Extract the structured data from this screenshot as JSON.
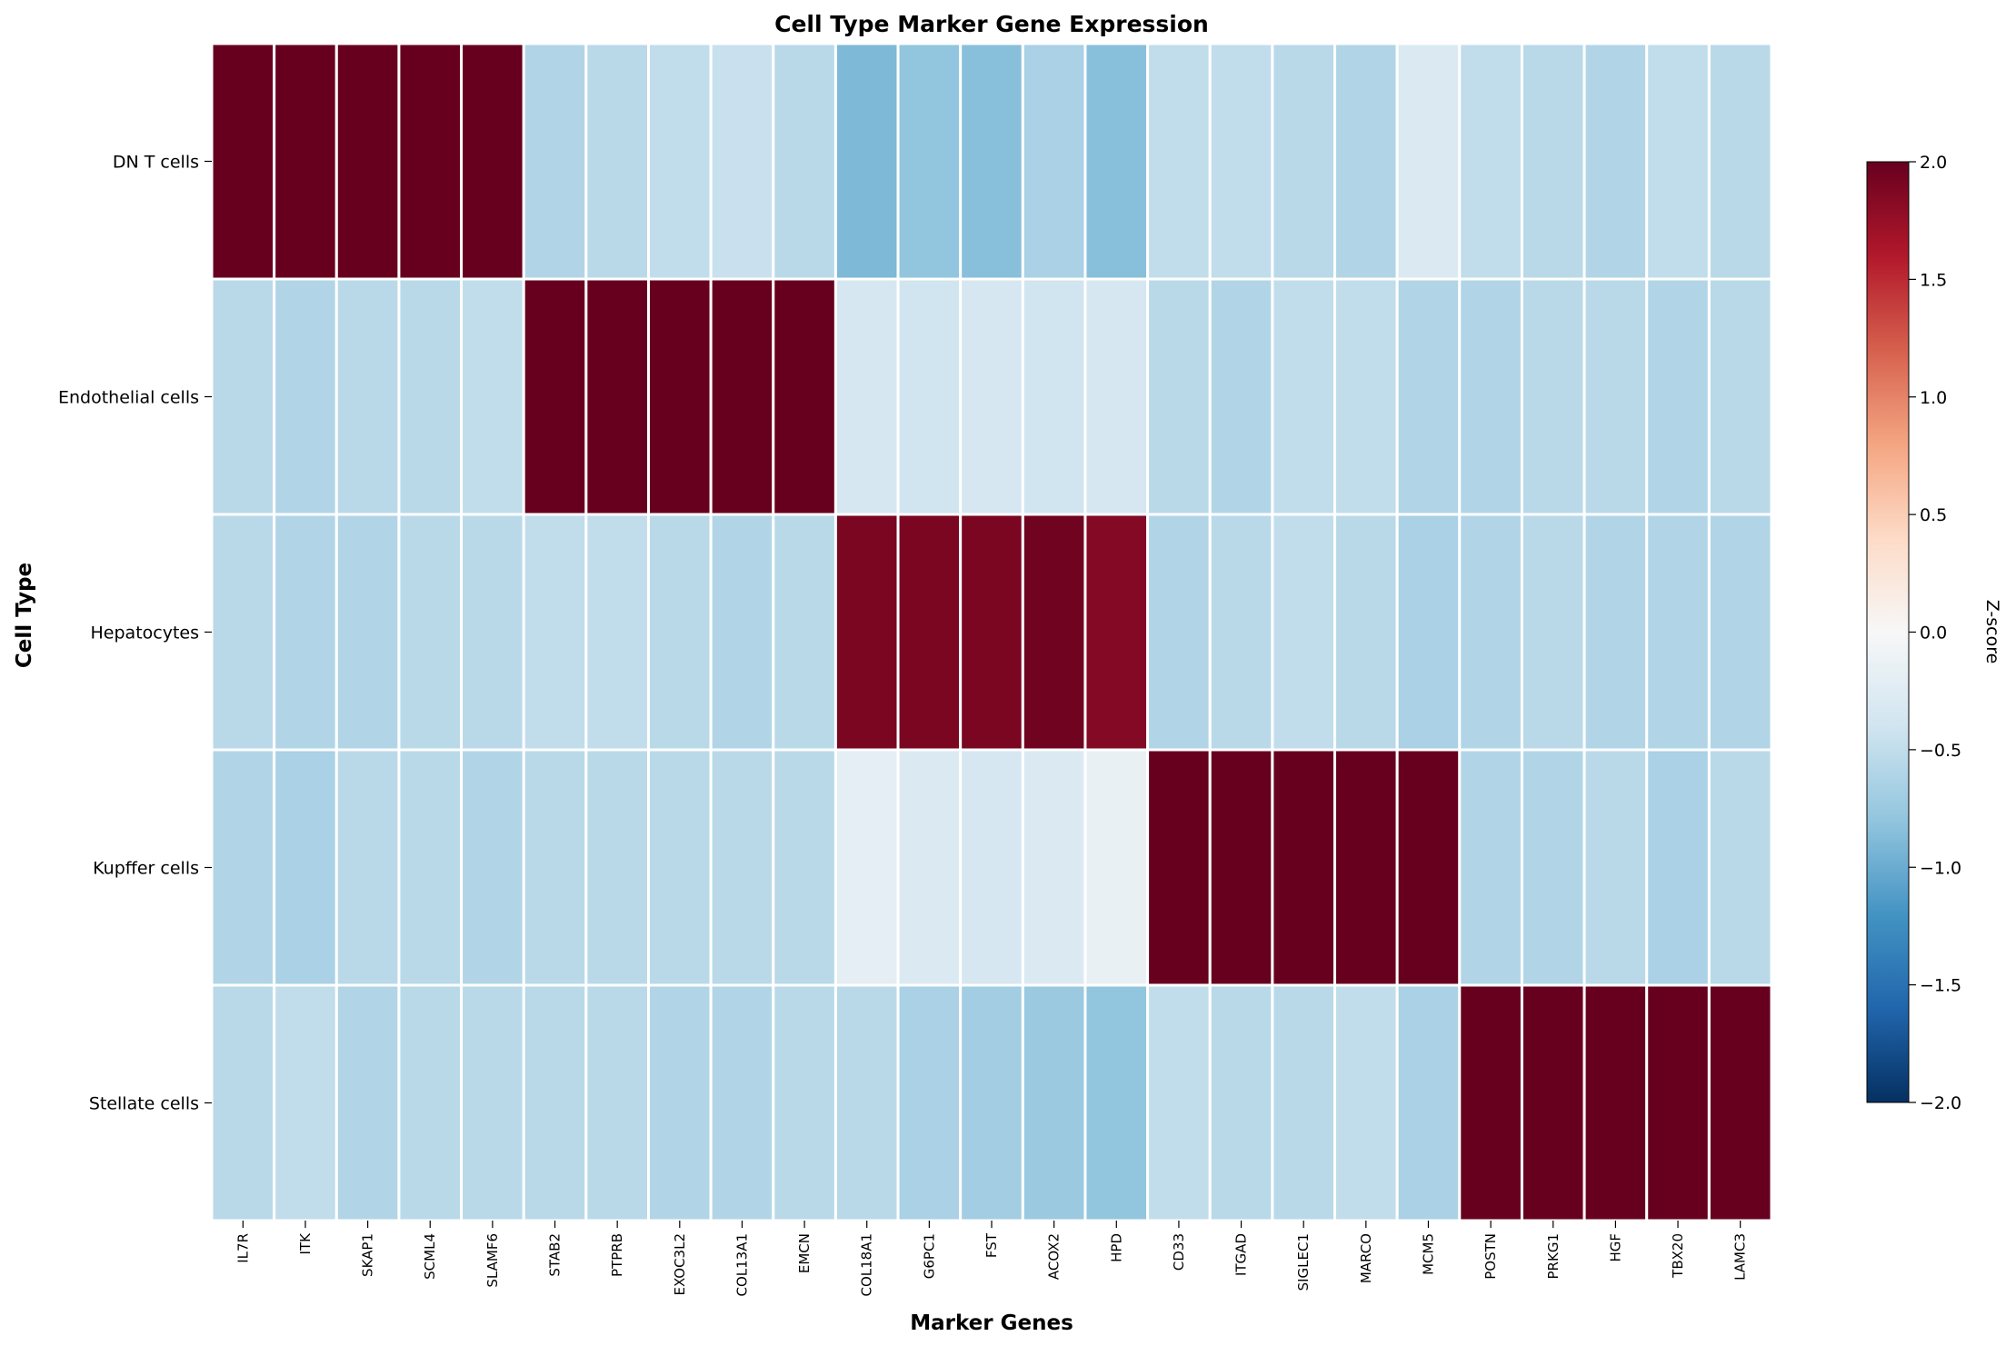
{
  "chart_data": {
    "type": "heatmap",
    "title": "Cell Type Marker Gene Expression",
    "xlabel": "Marker Genes",
    "ylabel": "Cell Type",
    "rows": [
      "DN T cells",
      "Endothelial cells",
      "Hepatocytes",
      "Kupffer cells",
      "Stellate cells"
    ],
    "columns": [
      "IL7R",
      "ITK",
      "SKAP1",
      "SCML4",
      "SLAMF6",
      "STAB2",
      "PTPRB",
      "EXOC3L2",
      "COL13A1",
      "EMCN",
      "COL18A1",
      "G6PC1",
      "FST",
      "ACOX2",
      "HPD",
      "CD33",
      "ITGAD",
      "SIGLEC1",
      "MARCO",
      "MCM5",
      "POSTN",
      "PRKG1",
      "HGF",
      "TBX20",
      "LAMC3"
    ],
    "values": [
      [
        2.0,
        2.0,
        2.0,
        2.0,
        2.0,
        -0.6,
        -0.55,
        -0.5,
        -0.45,
        -0.55,
        -0.9,
        -0.8,
        -0.85,
        -0.65,
        -0.85,
        -0.5,
        -0.5,
        -0.55,
        -0.6,
        -0.3,
        -0.5,
        -0.55,
        -0.6,
        -0.5,
        -0.55
      ],
      [
        -0.55,
        -0.6,
        -0.55,
        -0.55,
        -0.5,
        2.0,
        2.0,
        2.0,
        2.0,
        2.0,
        -0.35,
        -0.4,
        -0.35,
        -0.4,
        -0.35,
        -0.55,
        -0.6,
        -0.5,
        -0.5,
        -0.6,
        -0.6,
        -0.55,
        -0.55,
        -0.6,
        -0.55
      ],
      [
        -0.55,
        -0.6,
        -0.6,
        -0.55,
        -0.55,
        -0.5,
        -0.5,
        -0.55,
        -0.6,
        -0.55,
        1.9,
        1.9,
        1.9,
        1.95,
        1.85,
        -0.6,
        -0.55,
        -0.5,
        -0.55,
        -0.65,
        -0.6,
        -0.55,
        -0.6,
        -0.6,
        -0.6
      ],
      [
        -0.6,
        -0.65,
        -0.55,
        -0.55,
        -0.6,
        -0.55,
        -0.55,
        -0.55,
        -0.55,
        -0.55,
        -0.2,
        -0.3,
        -0.35,
        -0.3,
        -0.15,
        2.0,
        2.0,
        2.0,
        2.0,
        2.0,
        -0.6,
        -0.6,
        -0.55,
        -0.65,
        -0.55
      ],
      [
        -0.55,
        -0.5,
        -0.6,
        -0.55,
        -0.55,
        -0.55,
        -0.55,
        -0.6,
        -0.6,
        -0.55,
        -0.55,
        -0.65,
        -0.7,
        -0.75,
        -0.8,
        -0.5,
        -0.55,
        -0.55,
        -0.5,
        -0.65,
        2.0,
        2.0,
        2.0,
        2.0,
        2.0
      ]
    ],
    "colorbar": {
      "label": "Z-score",
      "min": -2.0,
      "max": 2.0,
      "ticks": [
        "−2.0",
        "−1.5",
        "−1.0",
        "−0.5",
        "0.0",
        "0.5",
        "1.0",
        "1.5",
        "2.0"
      ],
      "colormap": "RdBu_r"
    }
  }
}
